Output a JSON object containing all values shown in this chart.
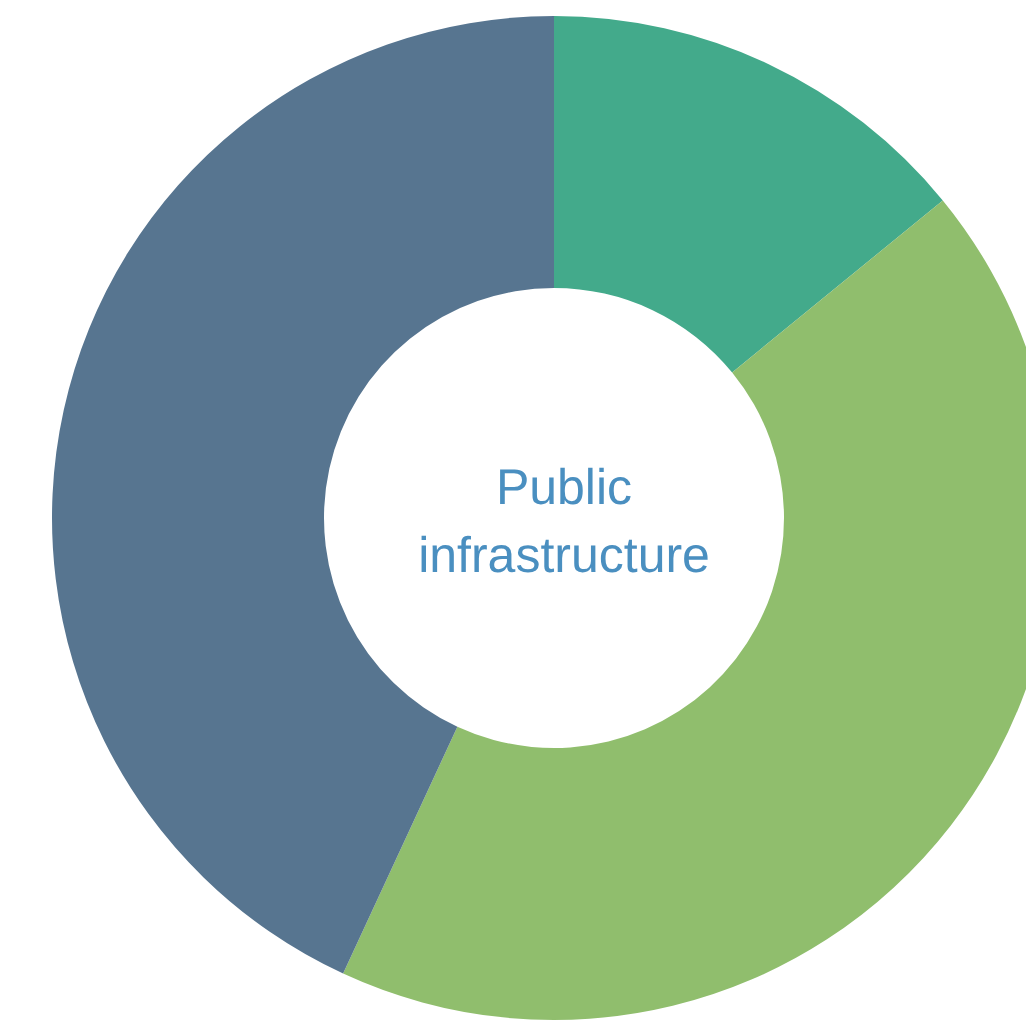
{
  "chart_data": {
    "type": "donut",
    "title": "Public\ninfrastructure",
    "categories": [
      null,
      null,
      null
    ],
    "values": [
      14.1,
      42.8,
      43.1
    ],
    "colors": [
      "#43aa8b",
      "#90be6d",
      "#577590"
    ]
  }
}
